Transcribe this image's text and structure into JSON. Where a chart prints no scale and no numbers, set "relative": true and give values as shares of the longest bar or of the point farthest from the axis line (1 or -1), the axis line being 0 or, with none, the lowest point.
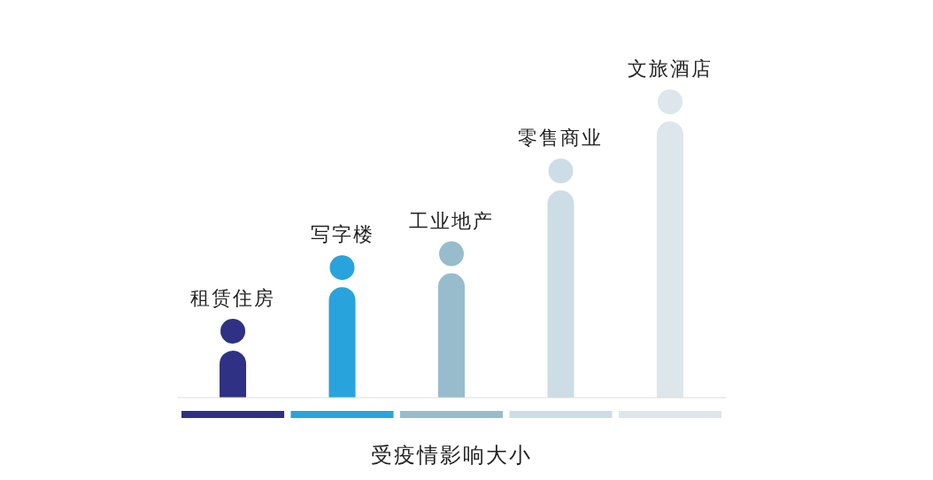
{
  "chart_data": {
    "type": "bar",
    "relative": true,
    "xlabel": "受疫情影响大小",
    "categories": [
      "租赁住房",
      "写字楼",
      "工业地产",
      "零售商业",
      "文旅酒店"
    ],
    "values": [
      0.17,
      0.4,
      0.45,
      0.75,
      1
    ],
    "colors": [
      "#2e3184",
      "#29a3dc",
      "#97bccc",
      "#ccdde5",
      "#dde6ea"
    ]
  }
}
